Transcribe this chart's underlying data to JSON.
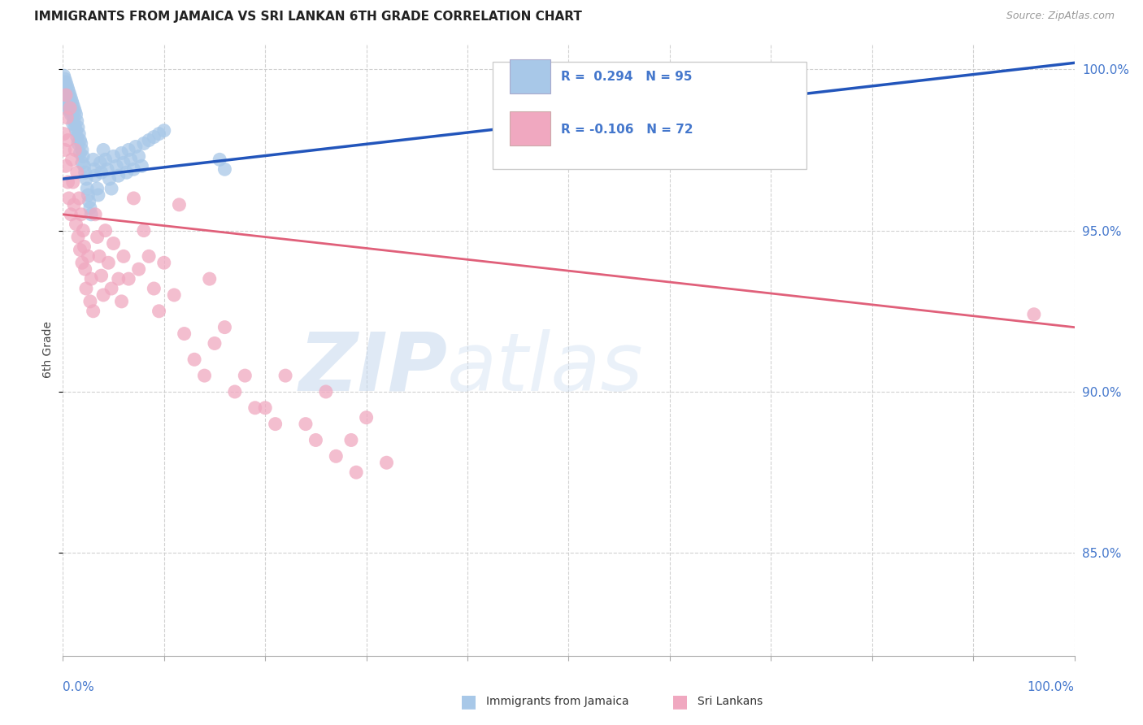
{
  "title": "IMMIGRANTS FROM JAMAICA VS SRI LANKAN 6TH GRADE CORRELATION CHART",
  "source": "Source: ZipAtlas.com",
  "ylabel": "6th Grade",
  "right_yticks": [
    "100.0%",
    "95.0%",
    "90.0%",
    "85.0%"
  ],
  "right_ytick_vals": [
    1.0,
    0.95,
    0.9,
    0.85
  ],
  "watermark_zip": "ZIP",
  "watermark_atlas": "atlas",
  "legend_blue_label": "Immigrants from Jamaica",
  "legend_pink_label": "Sri Lankans",
  "r_blue": "0.294",
  "n_blue": "95",
  "r_pink": "-0.106",
  "n_pink": "72",
  "blue_color": "#a8c8e8",
  "pink_color": "#f0a8c0",
  "blue_line_color": "#2255bb",
  "pink_line_color": "#e0607a",
  "blue_line": {
    "x0": 0.0,
    "x1": 1.0,
    "y0": 0.966,
    "y1": 1.002
  },
  "pink_line": {
    "x0": 0.0,
    "x1": 1.0,
    "y0": 0.955,
    "y1": 0.92
  },
  "xlim": [
    0.0,
    1.0
  ],
  "ylim": [
    0.818,
    1.008
  ],
  "background_color": "#ffffff",
  "grid_color": "#cccccc",
  "axis_label_color": "#4477cc",
  "blue_scatter_x": [
    0.001,
    0.001,
    0.002,
    0.002,
    0.002,
    0.002,
    0.003,
    0.003,
    0.003,
    0.003,
    0.004,
    0.004,
    0.004,
    0.004,
    0.005,
    0.005,
    0.005,
    0.006,
    0.006,
    0.006,
    0.007,
    0.007,
    0.007,
    0.008,
    0.008,
    0.008,
    0.009,
    0.009,
    0.01,
    0.01,
    0.01,
    0.011,
    0.011,
    0.012,
    0.012,
    0.013,
    0.013,
    0.014,
    0.014,
    0.015,
    0.015,
    0.016,
    0.017,
    0.017,
    0.018,
    0.019,
    0.019,
    0.02,
    0.021,
    0.022,
    0.023,
    0.024,
    0.025,
    0.026,
    0.027,
    0.028,
    0.03,
    0.031,
    0.032,
    0.034,
    0.035,
    0.037,
    0.038,
    0.04,
    0.042,
    0.044,
    0.046,
    0.048,
    0.05,
    0.053,
    0.055,
    0.058,
    0.06,
    0.063,
    0.065,
    0.067,
    0.07,
    0.072,
    0.075,
    0.078,
    0.08,
    0.085,
    0.09,
    0.095,
    0.1,
    0.155,
    0.16,
    0.48,
    0.51,
    0.53,
    0.54,
    0.56,
    0.57,
    0.58,
    0.59
  ],
  "blue_scatter_y": [
    0.998,
    0.996,
    0.997,
    0.995,
    0.994,
    0.993,
    0.996,
    0.994,
    0.992,
    0.991,
    0.995,
    0.993,
    0.99,
    0.988,
    0.994,
    0.992,
    0.989,
    0.993,
    0.991,
    0.988,
    0.992,
    0.99,
    0.987,
    0.991,
    0.989,
    0.986,
    0.99,
    0.987,
    0.989,
    0.986,
    0.983,
    0.988,
    0.984,
    0.987,
    0.982,
    0.986,
    0.981,
    0.984,
    0.979,
    0.982,
    0.977,
    0.98,
    0.978,
    0.974,
    0.977,
    0.975,
    0.971,
    0.973,
    0.97,
    0.968,
    0.966,
    0.963,
    0.961,
    0.959,
    0.957,
    0.955,
    0.972,
    0.969,
    0.967,
    0.963,
    0.961,
    0.971,
    0.968,
    0.975,
    0.972,
    0.969,
    0.966,
    0.963,
    0.973,
    0.97,
    0.967,
    0.974,
    0.971,
    0.968,
    0.975,
    0.972,
    0.969,
    0.976,
    0.973,
    0.97,
    0.977,
    0.978,
    0.979,
    0.98,
    0.981,
    0.972,
    0.969,
    0.997,
    0.998,
    0.999,
    0.999,
    1.0,
    1.0,
    1.0,
    1.0
  ],
  "pink_scatter_x": [
    0.001,
    0.002,
    0.003,
    0.003,
    0.004,
    0.005,
    0.005,
    0.006,
    0.007,
    0.008,
    0.009,
    0.01,
    0.011,
    0.012,
    0.013,
    0.014,
    0.015,
    0.016,
    0.017,
    0.018,
    0.019,
    0.02,
    0.021,
    0.022,
    0.023,
    0.025,
    0.027,
    0.028,
    0.03,
    0.032,
    0.034,
    0.036,
    0.038,
    0.04,
    0.042,
    0.045,
    0.048,
    0.05,
    0.055,
    0.058,
    0.06,
    0.065,
    0.07,
    0.075,
    0.08,
    0.085,
    0.09,
    0.095,
    0.1,
    0.11,
    0.115,
    0.12,
    0.13,
    0.14,
    0.145,
    0.15,
    0.16,
    0.17,
    0.18,
    0.19,
    0.2,
    0.21,
    0.22,
    0.24,
    0.25,
    0.26,
    0.27,
    0.285,
    0.29,
    0.3,
    0.32,
    0.96
  ],
  "pink_scatter_y": [
    0.98,
    0.975,
    0.992,
    0.97,
    0.985,
    0.965,
    0.978,
    0.96,
    0.988,
    0.955,
    0.972,
    0.965,
    0.958,
    0.975,
    0.952,
    0.968,
    0.948,
    0.96,
    0.944,
    0.955,
    0.94,
    0.95,
    0.945,
    0.938,
    0.932,
    0.942,
    0.928,
    0.935,
    0.925,
    0.955,
    0.948,
    0.942,
    0.936,
    0.93,
    0.95,
    0.94,
    0.932,
    0.946,
    0.935,
    0.928,
    0.942,
    0.935,
    0.96,
    0.938,
    0.95,
    0.942,
    0.932,
    0.925,
    0.94,
    0.93,
    0.958,
    0.918,
    0.91,
    0.905,
    0.935,
    0.915,
    0.92,
    0.9,
    0.905,
    0.895,
    0.895,
    0.89,
    0.905,
    0.89,
    0.885,
    0.9,
    0.88,
    0.885,
    0.875,
    0.892,
    0.878,
    0.924
  ]
}
